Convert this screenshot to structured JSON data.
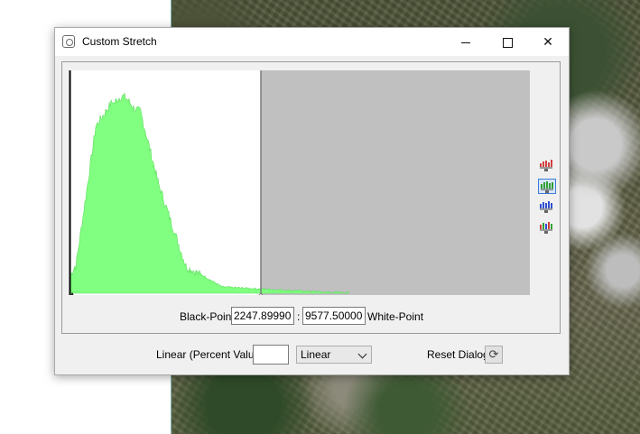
{
  "window": {
    "title": "Custom Stretch",
    "minimize_icon": "minimize-icon",
    "maximize_icon": "maximize-icon",
    "close_icon": "close-icon"
  },
  "histogram": {
    "band_color": "#80ff80",
    "stretched_region_color": "#ffffff",
    "outside_region_color": "#c0c0c0",
    "band_selectors": [
      {
        "icon": "red-band-histogram-icon",
        "color": "#d04040",
        "active": false
      },
      {
        "icon": "green-band-histogram-icon",
        "color": "#30a030",
        "active": true
      },
      {
        "icon": "blue-band-histogram-icon",
        "color": "#3050d0",
        "active": false
      },
      {
        "icon": "rgb-band-histogram-icon",
        "color": "#808080",
        "active": false
      }
    ]
  },
  "stretch": {
    "black_point_label": "Black-Point",
    "black_point_value": "2247.89990",
    "separator": ":",
    "white_point_value": "9577.50000",
    "white_point_label": "White-Point"
  },
  "footer": {
    "linear_label": "Linear (Percent Value)",
    "linear_value": "",
    "stretch_type_selected": "Linear",
    "reset_label": "Reset Dialog",
    "reset_icon": "refresh-icon"
  }
}
